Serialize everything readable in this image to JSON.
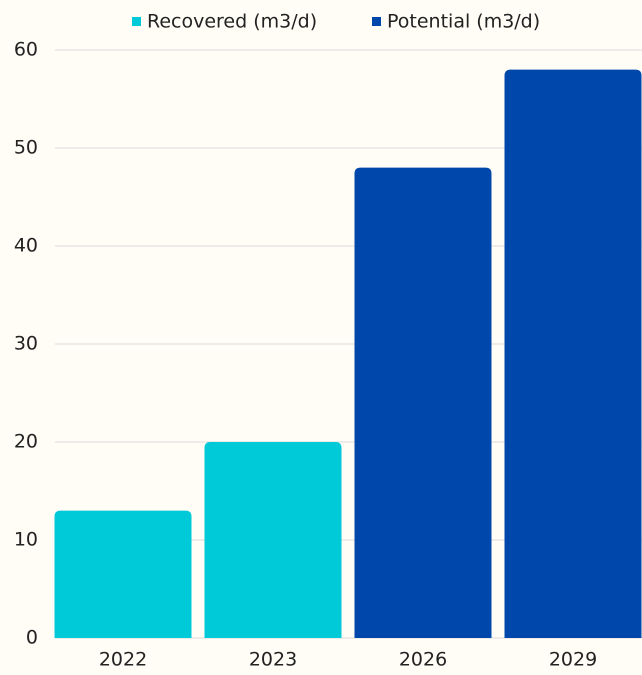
{
  "chart_data": {
    "type": "bar",
    "categories": [
      "2022",
      "2023",
      "2026",
      "2029"
    ],
    "series": [
      {
        "name": "Recovered (m3/d)",
        "color": "#00c9d8",
        "values": [
          13,
          20,
          null,
          null
        ]
      },
      {
        "name": "Potential (m3/d)",
        "color": "#0047ab",
        "values": [
          null,
          null,
          48,
          58
        ]
      }
    ],
    "ylim": [
      0,
      60
    ],
    "yticks": [
      0,
      10,
      20,
      30,
      40,
      50,
      60
    ],
    "grid": true,
    "legend": "top"
  }
}
